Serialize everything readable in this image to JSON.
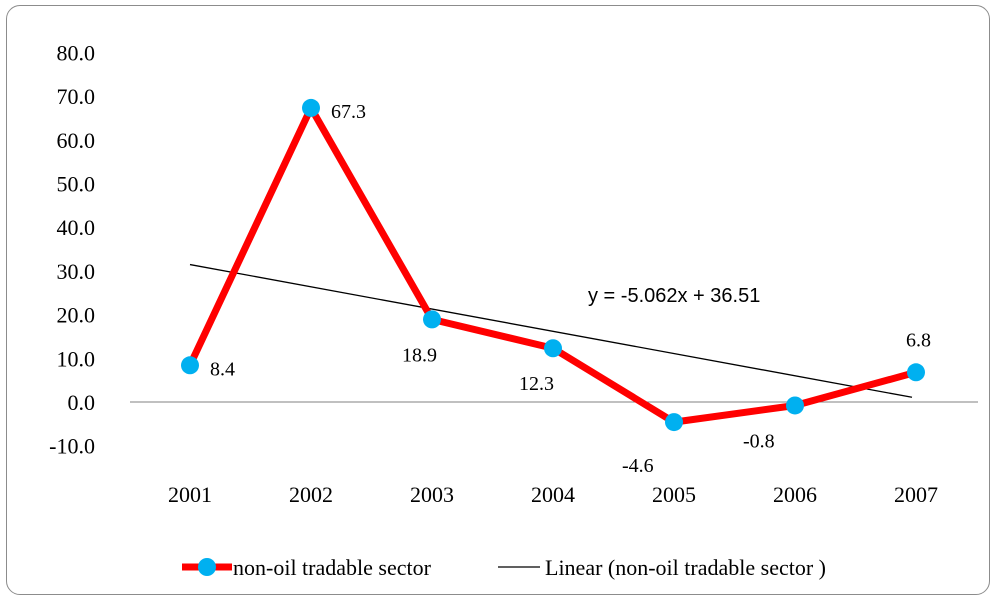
{
  "chart_data": {
    "type": "line",
    "categories": [
      "2001",
      "2002",
      "2003",
      "2004",
      "2005",
      "2006",
      "2007"
    ],
    "series": [
      {
        "name": "non-oil tradable sector",
        "values": [
          8.4,
          67.3,
          18.9,
          12.3,
          -4.6,
          -0.8,
          6.8
        ],
        "data_labels": [
          "8.4",
          "67.3",
          "18.9",
          "12.3",
          "-4.6",
          "-0.8",
          "6.8"
        ],
        "line_color": "#ff0000",
        "marker_color": "#00b0f0"
      }
    ],
    "trendline": {
      "name": "Linear (non-oil tradable sector )",
      "slope": -5.062,
      "intercept": 36.51,
      "equation": "y = -5.062x + 36.51",
      "color": "#000000"
    },
    "ylim": [
      -10,
      80
    ],
    "yticks": [
      "80.0",
      "70.0",
      "60.0",
      "50.0",
      "40.0",
      "30.0",
      "20.0",
      "10.0",
      "0.0",
      "-10.0"
    ],
    "legend_position": "bottom",
    "grid": false
  }
}
